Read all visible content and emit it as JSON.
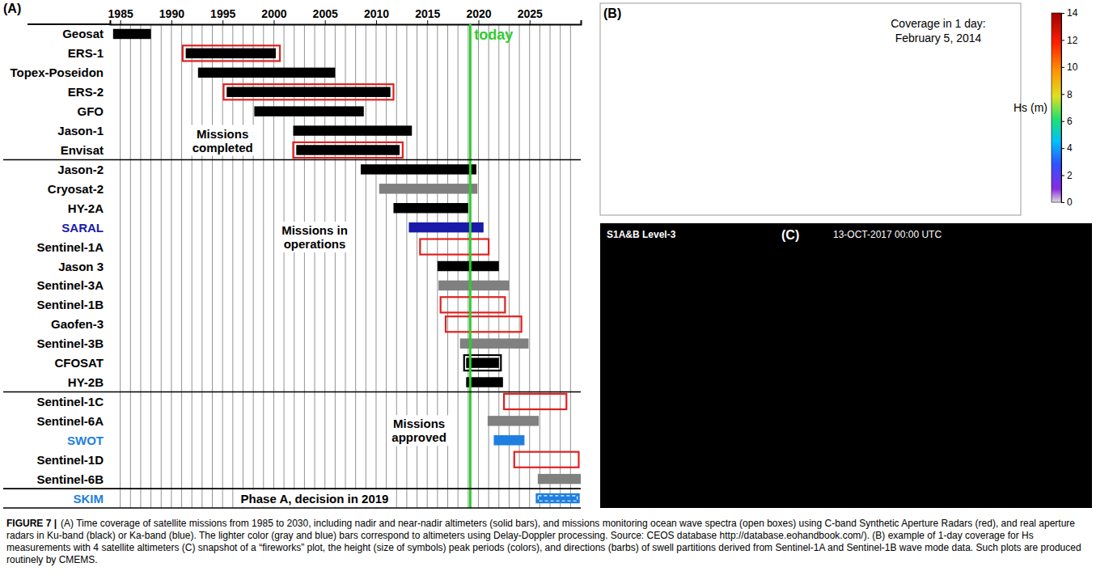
{
  "chart_data": {
    "type": "gantt",
    "orientation": "horizontal",
    "panel_label": "(A)",
    "xlim": [
      1984,
      2030
    ],
    "xticks": [
      1985,
      1990,
      1995,
      2000,
      2005,
      2010,
      2015,
      2020,
      2025
    ],
    "minor_xticks": [
      1985,
      1986,
      1987,
      1988,
      1989,
      1990,
      1991,
      1992,
      1993,
      1994,
      1995,
      1996,
      1997,
      1998,
      1999,
      2000,
      2001,
      2002,
      2003,
      2004,
      2005,
      2006,
      2007,
      2008,
      2009,
      2010,
      2011,
      2012,
      2013,
      2014,
      2015,
      2016,
      2017,
      2018,
      2019,
      2020,
      2021,
      2022,
      2023,
      2024,
      2025,
      2026,
      2027,
      2028,
      2029
    ],
    "groups": [
      {
        "label": "Missions completed",
        "categories": [
          "Geosat",
          "ERS-1",
          "Topex-Poseidon",
          "ERS-2",
          "GFO",
          "Jason-1",
          "Envisat"
        ]
      },
      {
        "label": "Missions in operations",
        "categories": [
          "Jason-2",
          "Cryosat-2",
          "HY-2A",
          "SARAL",
          "Sentinel-1A",
          "Jason 3",
          "Sentinel-3A",
          "Sentinel-1B",
          "Gaofen-3",
          "Sentinel-3B",
          "CFOSAT",
          "HY-2B"
        ]
      },
      {
        "label": "Missions approved",
        "categories": [
          "Sentinel-1C",
          "Sentinel-6A",
          "SWOT",
          "Sentinel-1D",
          "Sentinel-6B"
        ]
      },
      {
        "label": "Phase A, decision in 2019",
        "categories": [
          "SKIM"
        ]
      }
    ],
    "reference_line": {
      "label": "today",
      "value": 2019.2,
      "color": "#2ecc2e"
    },
    "series": [
      {
        "color": "#000000",
        "marker": "bar",
        "start": [
          1984.3,
          1991.4,
          1992.6,
          1995.4,
          1998.1,
          2001.9,
          2002.2,
          2008.5,
          null,
          2011.7,
          null,
          null,
          2016.0,
          null,
          null,
          null,
          null,
          2018.8,
          2018.8,
          null,
          null,
          null,
          null,
          null,
          null
        ],
        "end": [
          1988.0,
          2000.2,
          2006.0,
          2011.4,
          2008.8,
          2013.5,
          2012.3,
          2019.8,
          null,
          2019.0,
          null,
          null,
          2022.0,
          null,
          null,
          null,
          null,
          2022.0,
          2022.4,
          null,
          null,
          null,
          null,
          null,
          null
        ]
      },
      {
        "color": "#808080",
        "marker": "bar",
        "start": [
          null,
          null,
          null,
          null,
          null,
          null,
          null,
          null,
          2010.3,
          null,
          null,
          null,
          null,
          2016.1,
          null,
          null,
          2018.2,
          null,
          null,
          null,
          2020.9,
          null,
          null,
          2025.8,
          null
        ],
        "end": [
          null,
          null,
          null,
          null,
          null,
          null,
          null,
          null,
          2019.9,
          null,
          null,
          null,
          null,
          2023.0,
          null,
          null,
          2024.9,
          null,
          null,
          null,
          2025.9,
          null,
          null,
          2030.0,
          null
        ]
      },
      {
        "color": "#1a1aaa",
        "marker": "bar",
        "start": [
          null,
          null,
          null,
          null,
          null,
          null,
          null,
          null,
          null,
          null,
          2013.2,
          null,
          null,
          null,
          null,
          null,
          null,
          null,
          null,
          null,
          null,
          null,
          null,
          null,
          null
        ],
        "end": [
          null,
          null,
          null,
          null,
          null,
          null,
          null,
          null,
          null,
          null,
          2020.5,
          null,
          null,
          null,
          null,
          null,
          null,
          null,
          null,
          null,
          null,
          null,
          null,
          null,
          null
        ]
      },
      {
        "color": "#1e7fe0",
        "marker": "bar",
        "start": [
          null,
          null,
          null,
          null,
          null,
          null,
          null,
          null,
          null,
          null,
          null,
          null,
          null,
          null,
          null,
          null,
          null,
          null,
          null,
          null,
          null,
          2021.5,
          null,
          null,
          null
        ],
        "end": [
          null,
          null,
          null,
          null,
          null,
          null,
          null,
          null,
          null,
          null,
          null,
          null,
          null,
          null,
          null,
          null,
          null,
          null,
          null,
          null,
          null,
          2024.5,
          null,
          null,
          null
        ]
      },
      {
        "color": "#e02020",
        "marker": "box",
        "start": [
          null,
          1991.1,
          null,
          1995.1,
          null,
          null,
          2001.9,
          null,
          null,
          null,
          null,
          2014.3,
          null,
          null,
          2016.3,
          2016.8,
          null,
          null,
          null,
          2022.5,
          null,
          null,
          2023.5,
          null,
          null
        ],
        "end": [
          null,
          2000.6,
          null,
          2011.7,
          null,
          null,
          2012.6,
          null,
          null,
          null,
          null,
          2021.0,
          null,
          null,
          2022.6,
          2024.2,
          null,
          null,
          null,
          2028.6,
          null,
          null,
          2029.8,
          null,
          null
        ]
      },
      {
        "color": "#000000",
        "marker": "box",
        "start": [
          null,
          null,
          null,
          null,
          null,
          null,
          null,
          null,
          null,
          null,
          null,
          null,
          null,
          null,
          null,
          null,
          null,
          2018.6,
          null,
          null,
          null,
          null,
          null,
          null,
          null
        ],
        "end": [
          null,
          null,
          null,
          null,
          null,
          null,
          null,
          null,
          null,
          null,
          null,
          null,
          null,
          null,
          null,
          null,
          null,
          2022.2,
          null,
          null,
          null,
          null,
          null,
          null,
          null
        ]
      },
      {
        "color": "#1e7fe0",
        "marker": "bar",
        "line_style": "dashed",
        "start": [
          null,
          null,
          null,
          null,
          null,
          null,
          null,
          null,
          null,
          null,
          null,
          null,
          null,
          null,
          null,
          null,
          null,
          null,
          null,
          null,
          null,
          null,
          null,
          null,
          2025.6
        ],
        "end": [
          null,
          null,
          null,
          null,
          null,
          null,
          null,
          null,
          null,
          null,
          null,
          null,
          null,
          null,
          null,
          null,
          null,
          null,
          null,
          null,
          null,
          null,
          null,
          null,
          2029.9
        ]
      }
    ]
  },
  "panel_b": {
    "panel_label": "(B)",
    "annotation": [
      "Coverage in 1 day:",
      "February 5, 2014"
    ],
    "colorbar": {
      "label": "Hs (m)",
      "range": [
        0,
        14
      ],
      "ticks": [
        0,
        2,
        4,
        6,
        8,
        10,
        12,
        14
      ]
    }
  },
  "panel_c": {
    "panel_label": "(C)",
    "header": "S1A&B Level-3",
    "timestamp": "13-OCT-2017 00:00 UTC"
  },
  "caption": {
    "label": "FIGURE 7 |",
    "text": "(A) Time coverage of satellite missions from 1985 to 2030, including nadir and near-nadir altimeters (solid bars), and missions monitoring ocean wave spectra (open boxes) using C-band Synthetic Aperture Radars (red), and real aperture radars in Ku-band (black) or Ka-band (blue). The lighter color (gray and blue) bars correspond to altimeters using Delay-Doppler processing. Source: CEOS database http://database.eohandbook.com/). (B) example of 1-day coverage for Hs measurements with 4 satellite altimeters (C) snapshot of a “fireworks” plot, the height (size of symbols) peak periods (colors), and directions (barbs) of swell partitions derived from Sentinel-1A and Sentinel-1B wave mode data. Such plots are produced routinely by CMEMS."
  }
}
